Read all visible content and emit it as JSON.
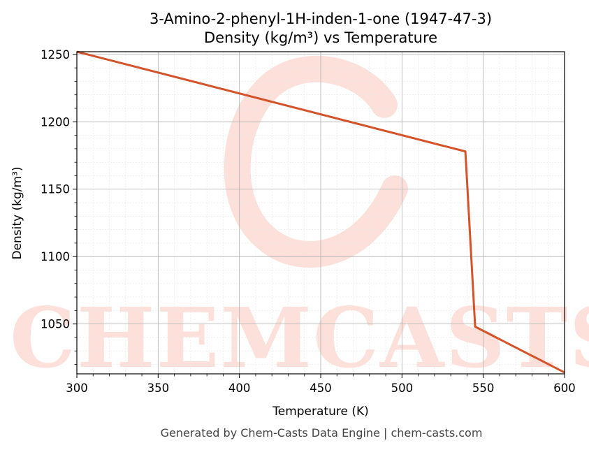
{
  "chart_data": {
    "type": "line",
    "title_line1": "3-Amino-2-phenyl-1H-inden-1-one (1947-47-3)",
    "title_line2": "Density (kg/m³) vs Temperature",
    "xlabel": "Temperature (K)",
    "ylabel": "Density (kg/m³)",
    "xlim": [
      300,
      600
    ],
    "ylim": [
      1013,
      1252
    ],
    "x_ticks": [
      300,
      350,
      400,
      450,
      500,
      550,
      600
    ],
    "y_ticks": [
      1050,
      1100,
      1150,
      1200,
      1250
    ],
    "grid": true,
    "series": [
      {
        "color": "#d4532a",
        "points": [
          [
            300,
            1252
          ],
          [
            539,
            1178
          ],
          [
            545,
            1048
          ],
          [
            600,
            1014
          ]
        ]
      }
    ]
  },
  "watermark": {
    "text": "CHEMCASTS",
    "color": "#fde0da"
  },
  "footer": "Generated by Chem-Casts Data Engine | chem-casts.com"
}
